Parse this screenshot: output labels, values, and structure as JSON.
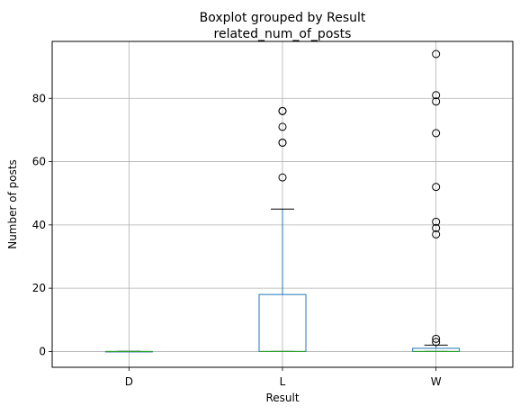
{
  "chart_data": {
    "type": "boxplot",
    "suptitle": "Boxplot grouped by Result",
    "title": "related_num_of_posts",
    "xlabel": "Result",
    "ylabel": "Number of posts",
    "ylim": [
      -5,
      98
    ],
    "yticks": [
      0,
      20,
      40,
      60,
      80
    ],
    "grid": true,
    "colors": {
      "box": "#1f77b4",
      "median": "#2ca02c",
      "whisker": "#1f77b4",
      "cap": "#000000",
      "flier": "#000000",
      "grid": "#b0b0b0"
    },
    "categories": [
      "D",
      "L",
      "W"
    ],
    "boxes": [
      {
        "category": "D",
        "whislo": 0,
        "q1": 0,
        "median": 0,
        "q3": 0,
        "whishi": 0,
        "fliers": []
      },
      {
        "category": "L",
        "whislo": 0,
        "q1": 0,
        "median": 0,
        "q3": 18,
        "whishi": 45,
        "fliers": [
          55,
          66,
          66,
          71,
          76,
          76
        ]
      },
      {
        "category": "W",
        "whislo": 0,
        "q1": 0,
        "median": 0,
        "q3": 1,
        "whishi": 2,
        "fliers": [
          3,
          4,
          37,
          39,
          41,
          52,
          69,
          79,
          81,
          94
        ]
      }
    ]
  }
}
